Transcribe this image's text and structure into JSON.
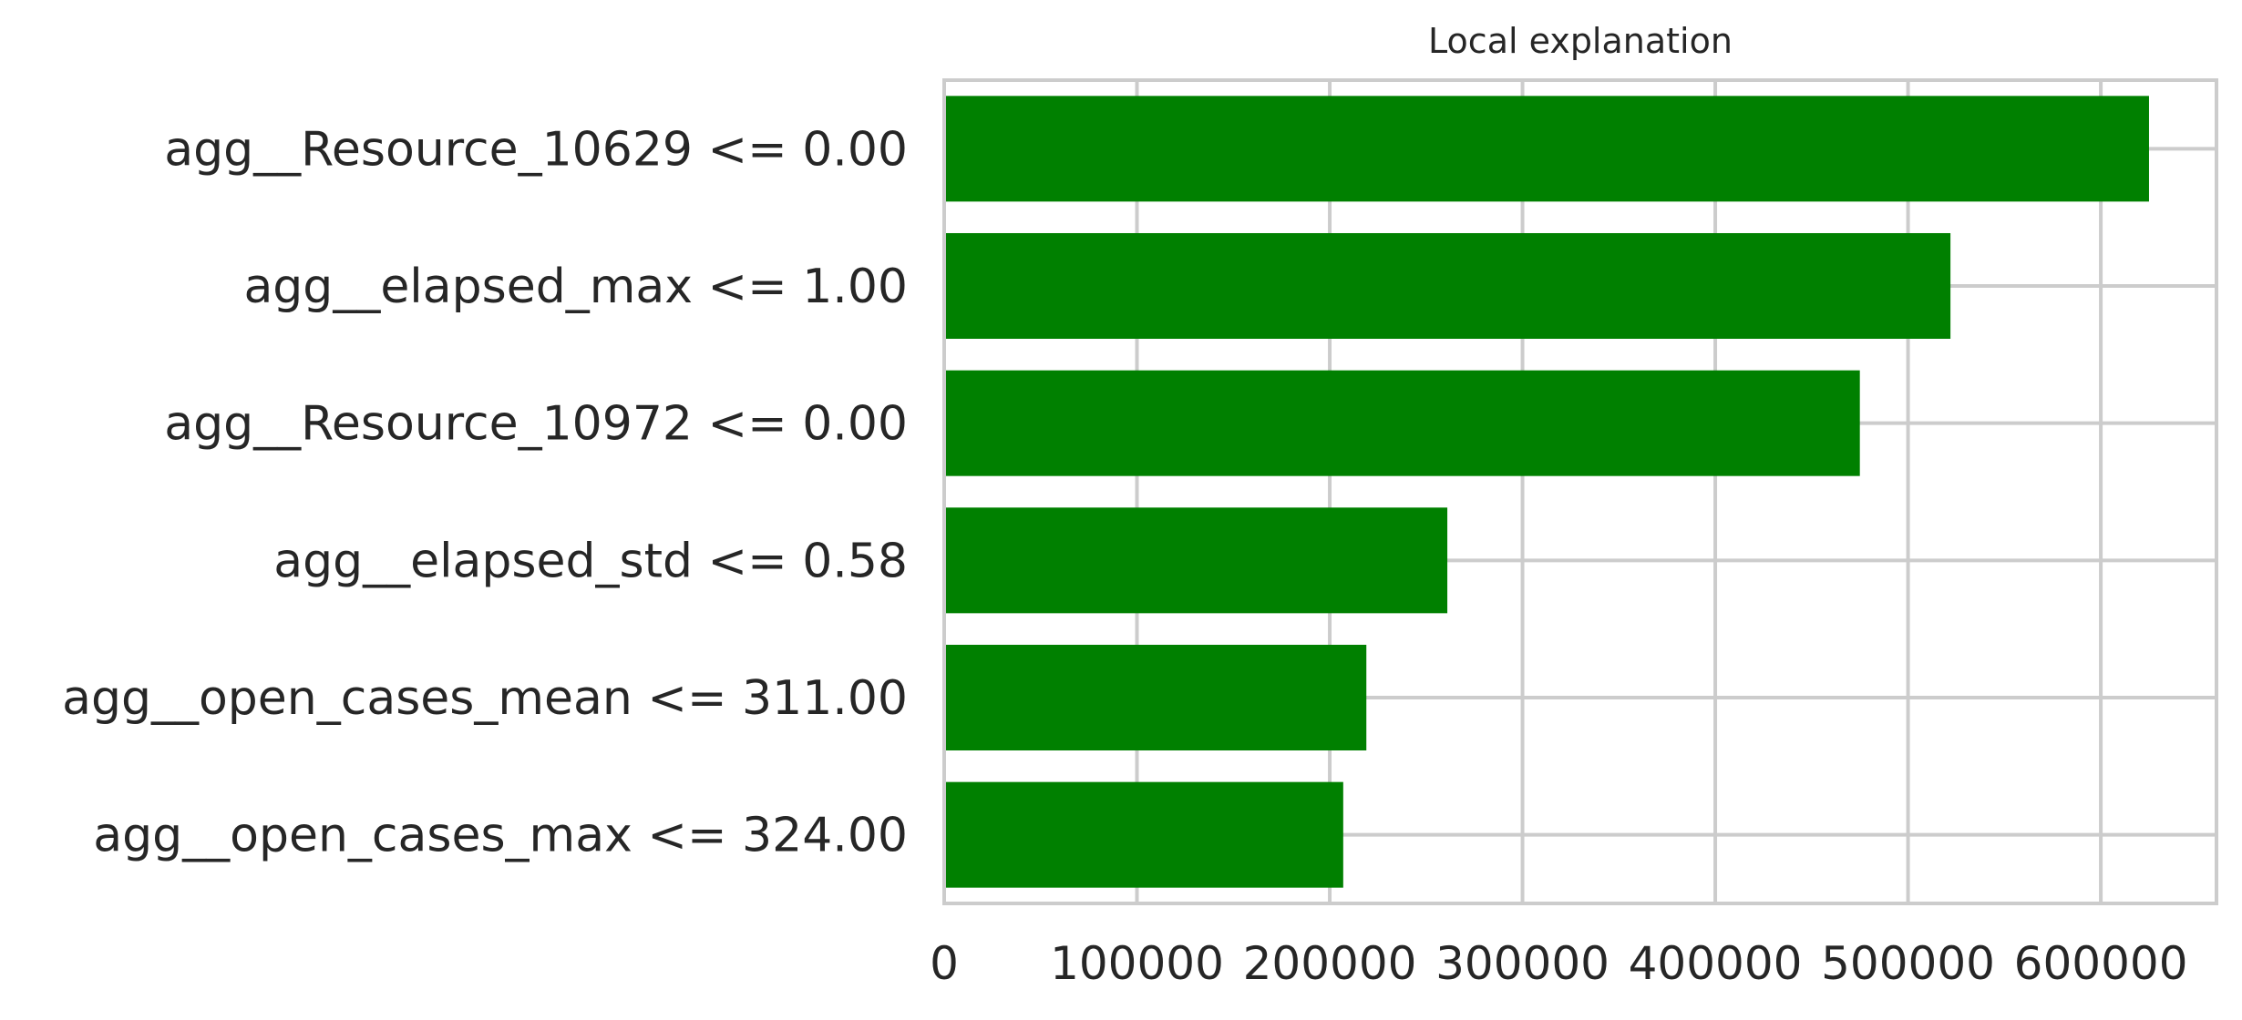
{
  "chart_data": {
    "type": "bar",
    "orientation": "horizontal",
    "title": "Local explanation",
    "xlabel": "",
    "ylabel": "",
    "categories": [
      "agg__Resource_10629 <= 0.00",
      "agg__elapsed_max <= 1.00",
      "agg__Resource_10972 <= 0.00",
      "agg__elapsed_std <= 0.58",
      "agg__open_cases_mean <= 311.00",
      "agg__open_cases_max <= 324.00"
    ],
    "values": [
      625000,
      522000,
      475000,
      261000,
      219000,
      207000
    ],
    "xlim": [
      0,
      660000
    ],
    "xticks": [
      0,
      100000,
      200000,
      300000,
      400000,
      500000,
      600000
    ],
    "xtick_labels": [
      "0",
      "100000",
      "200000",
      "300000",
      "400000",
      "500000",
      "600000"
    ],
    "bar_color": "#008000",
    "grid": true,
    "legend": false
  }
}
